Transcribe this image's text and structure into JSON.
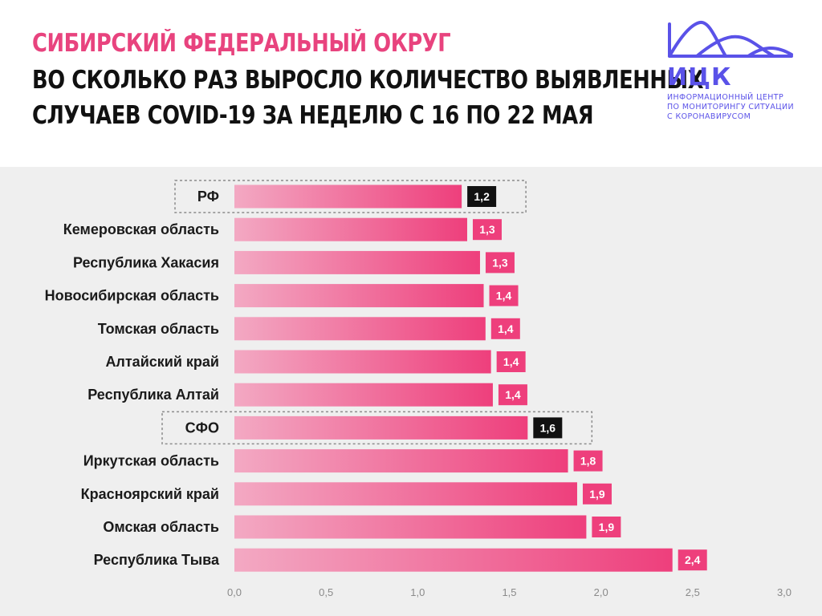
{
  "header": {
    "title_line1": "Сибирский федеральный округ",
    "title_line2": "Во сколько раз выросло количество выявленных",
    "title_line3": "случаев COVID-19 за неделю с 16 по 22 мая"
  },
  "logo": {
    "abbr": "ИЦК",
    "line1": "ИНФОРМАЦИОННЫЙ ЦЕНТР",
    "line2": "ПО МОНИТОРИНГУ СИТУАЦИИ",
    "line3": "С КОРОНАВИРУСОМ",
    "color": "#5a52e8"
  },
  "colors": {
    "title_accent": "#e8437e",
    "bar_start": "#f3a9c3",
    "bar_end": "#ee3f7c",
    "label_normal": "#ee3f7c",
    "label_highlight": "#111111",
    "background": "#efefef"
  },
  "chart_data": {
    "type": "bar",
    "orientation": "horizontal",
    "categories": [
      "РФ",
      "Кемеровская область",
      "Республика Хакасия",
      "Новосибирская область",
      "Томская область",
      "Алтайский край",
      "Республика Алтай",
      "СФО",
      "Иркутская область",
      "Красноярский край",
      "Омская область",
      "Республика Тыва"
    ],
    "values": [
      1.24,
      1.27,
      1.34,
      1.36,
      1.37,
      1.4,
      1.41,
      1.6,
      1.82,
      1.87,
      1.92,
      2.39
    ],
    "value_labels": [
      "1,2",
      "1,3",
      "1,3",
      "1,4",
      "1,4",
      "1,4",
      "1,4",
      "1,6",
      "1,8",
      "1,9",
      "1,9",
      "2,4"
    ],
    "highlighted": [
      "РФ",
      "СФО"
    ],
    "xlim": [
      0,
      3
    ],
    "xticks": [
      "0,0",
      "0,5",
      "1,0",
      "1,5",
      "2,0",
      "2,5",
      "3,0"
    ],
    "grid": false
  }
}
